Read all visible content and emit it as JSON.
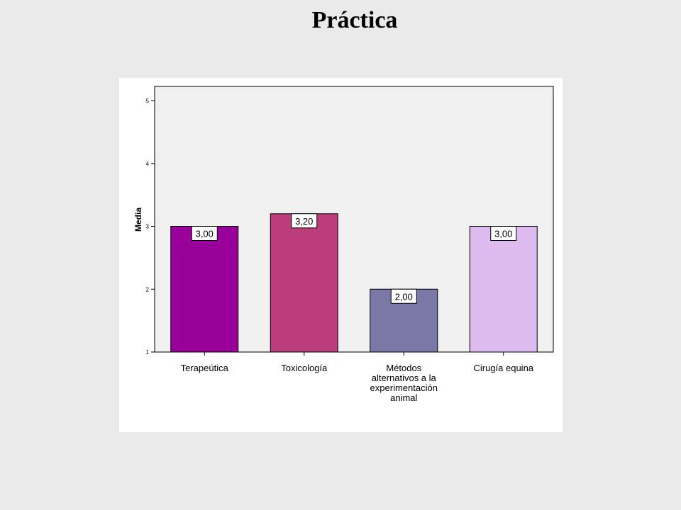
{
  "slide": {
    "title": "Práctica"
  },
  "chart_data": {
    "type": "bar",
    "title": "",
    "xlabel": "",
    "ylabel": "Media",
    "ylim": [
      1,
      5
    ],
    "yticks": [
      "1",
      "2",
      "3",
      "4",
      "5"
    ],
    "categories": [
      [
        "Terapeútica"
      ],
      [
        "Toxicología"
      ],
      [
        "Métodos",
        "alternativos a la",
        "experimentación",
        "animal"
      ],
      [
        "Cirugía equina"
      ]
    ],
    "values": [
      3.0,
      3.2,
      2.0,
      3.0
    ],
    "value_labels": [
      "3,00",
      "3,20",
      "2,00",
      "3,00"
    ],
    "colors": [
      "#990099",
      "#bb3d7c",
      "#7b78a8",
      "#ddbbee"
    ],
    "plot_background": "#f0f0f0",
    "grid": false,
    "legend": "none"
  }
}
